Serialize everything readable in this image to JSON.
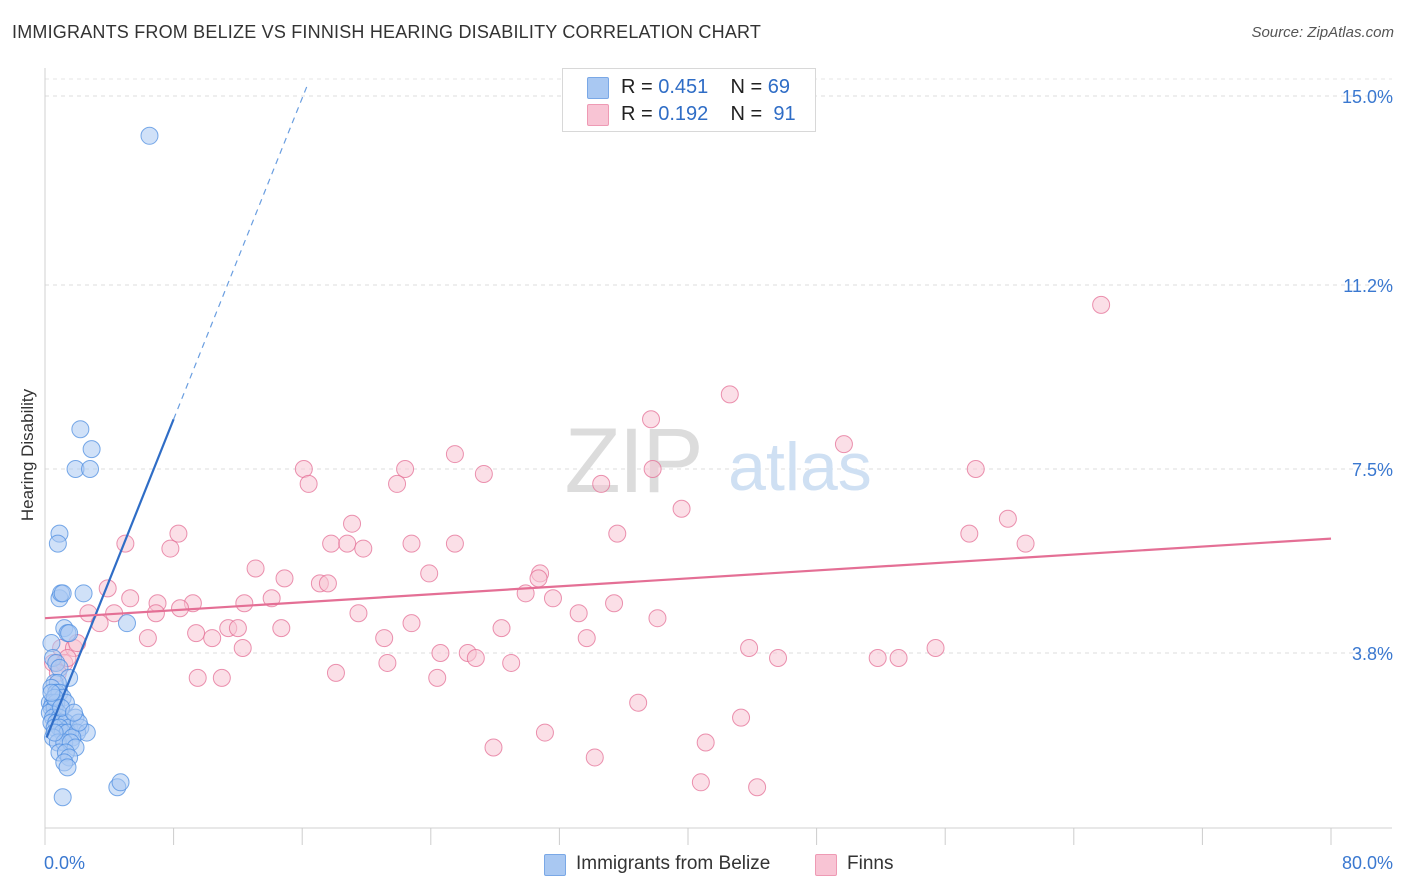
{
  "title": "IMMIGRANTS FROM BELIZE VS FINNISH HEARING DISABILITY CORRELATION CHART",
  "source": "Source: ZipAtlas.com",
  "watermark": {
    "zip": "ZIP",
    "atlas": "atlas"
  },
  "legend": [
    {
      "r_label": "R =",
      "r_value": "0.451",
      "n_label": "N =",
      "n_value": "69",
      "color": "#a9c8f2",
      "border": "#7aa8e6"
    },
    {
      "r_label": "R =",
      "r_value": "0.192",
      "n_label": "N =",
      "n_value": "91",
      "color": "#f8c4d4",
      "border": "#ee9ab4"
    }
  ],
  "chart_data": {
    "type": "scatter",
    "title": "IMMIGRANTS FROM BELIZE VS FINNISH HEARING DISABILITY CORRELATION CHART",
    "xlabel": "",
    "ylabel": "Hearing Disability",
    "xlim": [
      0,
      80
    ],
    "ylim": [
      0,
      15.4
    ],
    "x_tick_labels": [
      "0.0%",
      "80.0%"
    ],
    "y_ticks": [
      3.8,
      7.5,
      11.2,
      15.0
    ],
    "y_tick_labels": [
      "3.8%",
      "7.5%",
      "11.2%",
      "15.0%"
    ],
    "series": [
      {
        "name": "Immigrants from Belize",
        "color": "#4d8ee0",
        "fill": "#a9c8f2",
        "trend": {
          "x0": 0.1,
          "y0": 2.1,
          "x1": 8.0,
          "y1": 8.5,
          "x_dash_end": 16.3,
          "y_dash_end": 15.2
        },
        "points": [
          [
            6.5,
            14.2
          ],
          [
            2.2,
            8.3
          ],
          [
            2.9,
            7.9
          ],
          [
            1.9,
            7.5
          ],
          [
            2.8,
            7.5
          ],
          [
            0.9,
            6.2
          ],
          [
            0.8,
            6.0
          ],
          [
            0.9,
            4.9
          ],
          [
            1.0,
            5.0
          ],
          [
            1.1,
            5.0
          ],
          [
            2.4,
            5.0
          ],
          [
            5.1,
            4.4
          ],
          [
            1.2,
            4.3
          ],
          [
            1.4,
            4.2
          ],
          [
            1.5,
            4.2
          ],
          [
            0.4,
            4.0
          ],
          [
            0.5,
            3.7
          ],
          [
            0.7,
            3.6
          ],
          [
            0.9,
            3.5
          ],
          [
            1.5,
            3.3
          ],
          [
            0.6,
            3.2
          ],
          [
            0.8,
            3.2
          ],
          [
            0.4,
            3.1
          ],
          [
            0.7,
            3.0
          ],
          [
            0.9,
            3.0
          ],
          [
            1.1,
            2.9
          ],
          [
            0.3,
            2.8
          ],
          [
            0.5,
            2.8
          ],
          [
            0.7,
            2.8
          ],
          [
            1.3,
            2.8
          ],
          [
            0.4,
            2.7
          ],
          [
            0.6,
            2.7
          ],
          [
            0.8,
            2.6
          ],
          [
            0.3,
            2.6
          ],
          [
            0.5,
            2.5
          ],
          [
            0.9,
            2.5
          ],
          [
            1.9,
            2.5
          ],
          [
            0.4,
            2.4
          ],
          [
            0.7,
            2.4
          ],
          [
            1.0,
            2.4
          ],
          [
            1.3,
            2.4
          ],
          [
            1.5,
            2.3
          ],
          [
            2.2,
            2.3
          ],
          [
            0.6,
            2.3
          ],
          [
            0.9,
            2.3
          ],
          [
            1.1,
            2.2
          ],
          [
            1.4,
            2.2
          ],
          [
            2.0,
            2.2
          ],
          [
            2.6,
            2.2
          ],
          [
            1.7,
            2.1
          ],
          [
            0.5,
            2.1
          ],
          [
            0.8,
            2.0
          ],
          [
            1.2,
            2.0
          ],
          [
            1.6,
            2.0
          ],
          [
            1.9,
            1.9
          ],
          [
            0.9,
            1.8
          ],
          [
            1.3,
            1.8
          ],
          [
            1.5,
            1.7
          ],
          [
            1.2,
            1.6
          ],
          [
            1.4,
            1.5
          ],
          [
            4.5,
            1.1
          ],
          [
            4.7,
            1.2
          ],
          [
            1.1,
            0.9
          ],
          [
            0.6,
            2.9
          ],
          [
            1.0,
            2.7
          ],
          [
            0.4,
            3.0
          ],
          [
            2.1,
            2.4
          ],
          [
            1.8,
            2.6
          ],
          [
            0.6,
            2.2
          ]
        ]
      },
      {
        "name": "Finns",
        "color": "#e46f95",
        "fill": "#f8c4d4",
        "trend": {
          "x0": 0.0,
          "y0": 4.5,
          "x1": 80.0,
          "y1": 6.1
        },
        "points": [
          [
            65.7,
            10.8
          ],
          [
            42.6,
            9.0
          ],
          [
            37.7,
            8.5
          ],
          [
            49.7,
            8.0
          ],
          [
            25.5,
            7.8
          ],
          [
            16.1,
            7.5
          ],
          [
            22.4,
            7.5
          ],
          [
            27.3,
            7.4
          ],
          [
            37.8,
            7.5
          ],
          [
            57.9,
            7.5
          ],
          [
            16.4,
            7.2
          ],
          [
            21.9,
            7.2
          ],
          [
            34.6,
            7.2
          ],
          [
            39.6,
            6.7
          ],
          [
            19.1,
            6.4
          ],
          [
            59.9,
            6.5
          ],
          [
            8.3,
            6.2
          ],
          [
            35.6,
            6.2
          ],
          [
            57.5,
            6.2
          ],
          [
            5.0,
            6.0
          ],
          [
            7.8,
            5.9
          ],
          [
            17.8,
            6.0
          ],
          [
            18.8,
            6.0
          ],
          [
            19.8,
            5.9
          ],
          [
            22.8,
            6.0
          ],
          [
            25.5,
            6.0
          ],
          [
            61.0,
            6.0
          ],
          [
            13.1,
            5.5
          ],
          [
            14.9,
            5.3
          ],
          [
            23.9,
            5.4
          ],
          [
            30.8,
            5.4
          ],
          [
            30.7,
            5.3
          ],
          [
            17.1,
            5.2
          ],
          [
            17.6,
            5.2
          ],
          [
            3.9,
            5.1
          ],
          [
            29.9,
            5.0
          ],
          [
            31.6,
            4.9
          ],
          [
            14.1,
            4.9
          ],
          [
            5.3,
            4.9
          ],
          [
            7.0,
            4.8
          ],
          [
            9.2,
            4.8
          ],
          [
            12.4,
            4.8
          ],
          [
            35.4,
            4.8
          ],
          [
            8.4,
            4.7
          ],
          [
            2.7,
            4.6
          ],
          [
            4.3,
            4.6
          ],
          [
            6.9,
            4.6
          ],
          [
            19.5,
            4.6
          ],
          [
            33.2,
            4.6
          ],
          [
            38.1,
            4.5
          ],
          [
            3.4,
            4.4
          ],
          [
            14.7,
            4.3
          ],
          [
            22.8,
            4.4
          ],
          [
            28.4,
            4.3
          ],
          [
            11.4,
            4.3
          ],
          [
            12.0,
            4.3
          ],
          [
            9.4,
            4.2
          ],
          [
            10.4,
            4.1
          ],
          [
            6.4,
            4.1
          ],
          [
            21.1,
            4.1
          ],
          [
            33.7,
            4.1
          ],
          [
            12.3,
            3.9
          ],
          [
            1.0,
            3.9
          ],
          [
            1.8,
            3.9
          ],
          [
            43.8,
            3.9
          ],
          [
            45.6,
            3.7
          ],
          [
            51.8,
            3.7
          ],
          [
            53.1,
            3.7
          ],
          [
            55.4,
            3.9
          ],
          [
            24.6,
            3.8
          ],
          [
            26.3,
            3.8
          ],
          [
            26.8,
            3.7
          ],
          [
            21.3,
            3.6
          ],
          [
            29.0,
            3.6
          ],
          [
            18.1,
            3.4
          ],
          [
            9.5,
            3.3
          ],
          [
            11.0,
            3.3
          ],
          [
            24.4,
            3.3
          ],
          [
            0.5,
            3.6
          ],
          [
            1.2,
            3.6
          ],
          [
            36.9,
            2.8
          ],
          [
            43.3,
            2.5
          ],
          [
            31.1,
            2.2
          ],
          [
            27.9,
            1.9
          ],
          [
            41.1,
            2.0
          ],
          [
            34.2,
            1.7
          ],
          [
            40.8,
            1.2
          ],
          [
            44.3,
            1.1
          ],
          [
            0.8,
            3.4
          ],
          [
            1.4,
            3.7
          ],
          [
            2.0,
            4.0
          ]
        ]
      }
    ]
  }
}
